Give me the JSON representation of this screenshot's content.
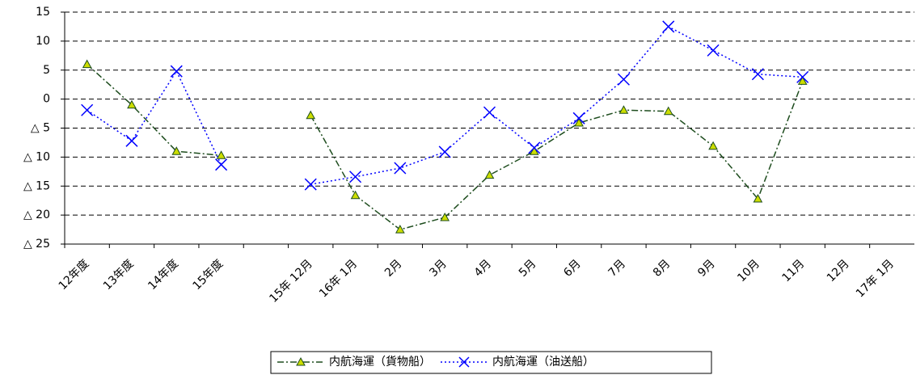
{
  "chart_data": {
    "type": "line",
    "categories": [
      "12年度",
      "13年度",
      "14年度",
      "15年度",
      null,
      "15年 12月",
      "16年 1月",
      "2月",
      "3月",
      "4月",
      "5月",
      "6月",
      "7月",
      "8月",
      "9月",
      "10月",
      "11月",
      "12月",
      "17年 1月"
    ],
    "series": [
      {
        "name": "内航海運（貨物船）",
        "color": "#1e4d1e",
        "marker_color": "#ccdd00",
        "values": [
          6,
          -1,
          -9,
          -9.7,
          null,
          -2.8,
          -16.6,
          -22.5,
          -20.4,
          -13.1,
          -9.0,
          -4.1,
          -1.9,
          -2.1,
          -8.1,
          -17.2,
          3.1,
          null,
          null
        ]
      },
      {
        "name": "内航海運（油送船）",
        "color": "#0000ff",
        "marker_color": "#0000ff",
        "values": [
          -1.9,
          -7.2,
          4.8,
          -11.3,
          null,
          -14.7,
          -13.4,
          -11.9,
          -9.1,
          -2.3,
          -8.4,
          -3.3,
          3.4,
          12.5,
          8.4,
          4.3,
          3.8,
          null,
          null
        ]
      }
    ],
    "ylim": [
      -25,
      15
    ],
    "yticks": [
      15,
      10,
      5,
      0,
      {
        "value": -5,
        "label": "△ 5"
      },
      {
        "value": -10,
        "label": "△ 10"
      },
      {
        "value": -15,
        "label": "△ 15"
      },
      {
        "value": -20,
        "label": "△ 20"
      },
      {
        "value": -25,
        "label": "△ 25"
      }
    ],
    "grid": true,
    "legend": "bottom"
  }
}
